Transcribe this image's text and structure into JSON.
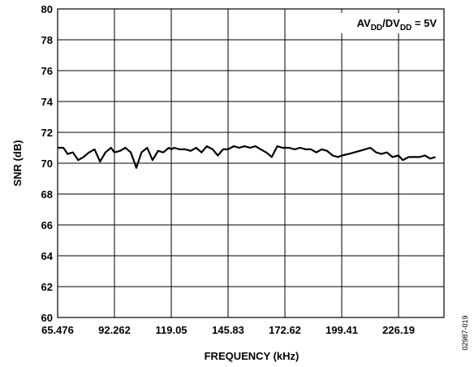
{
  "chart_data": {
    "type": "line",
    "xlabel": "FREQUENCY (kHz)",
    "ylabel": "SNR (dB)",
    "ylim": [
      60,
      80
    ],
    "xlim": [
      65.476,
      247.6
    ],
    "yticks": [
      "60",
      "62",
      "64",
      "66",
      "68",
      "70",
      "72",
      "74",
      "76",
      "78",
      "80"
    ],
    "xticks": [
      "65.476",
      "92.262",
      "119.05",
      "145.83",
      "172.62",
      "199.41",
      "226.19"
    ],
    "grid": true,
    "legend": {
      "base": "AV",
      "sub1": "DD",
      "mid": "/DV",
      "sub2": "DD",
      "tail": " = 5V",
      "placement": "top-right"
    },
    "figure_id": "02987-019",
    "line_color": "#000000",
    "series": [
      {
        "x": [
          65.476,
          68.2,
          70.2,
          72.7,
          75.2,
          77.7,
          80.3,
          82.9,
          85.5,
          88.0,
          90.6,
          92.262,
          94.9,
          97.4,
          100.0,
          102.6,
          105.0,
          107.7,
          110.2,
          112.8,
          115.3,
          117.9,
          119.05,
          120.4,
          123.0,
          125.6,
          128.2,
          130.8,
          133.3,
          135.8,
          138.5,
          141.0,
          143.5,
          145.83,
          148.5,
          151.1,
          153.6,
          156.1,
          158.7,
          161.2,
          163.8,
          166.4,
          169.0,
          171.4,
          172.62,
          174.6,
          177.2,
          179.8,
          182.4,
          184.9,
          187.4,
          190.0,
          192.5,
          195.1,
          197.7,
          199.41,
          202.8,
          205.3,
          207.9,
          210.4,
          212.9,
          215.6,
          218.1,
          220.7,
          223.3,
          226.19,
          228.2,
          231.0,
          233.5,
          236.0,
          238.6,
          241.1,
          243.6
        ],
        "y": [
          71.0,
          71.0,
          70.6,
          70.7,
          70.2,
          70.4,
          70.7,
          70.9,
          70.1,
          70.7,
          71.0,
          70.7,
          70.8,
          71.0,
          70.7,
          69.7,
          70.7,
          71.0,
          70.2,
          70.8,
          70.7,
          71.0,
          70.9,
          71.0,
          70.9,
          70.9,
          70.8,
          71.0,
          70.7,
          71.1,
          70.9,
          70.5,
          70.9,
          70.9,
          71.1,
          71.0,
          71.1,
          71.0,
          71.1,
          70.9,
          70.7,
          70.4,
          71.1,
          71.0,
          71.0,
          71.0,
          70.9,
          71.0,
          70.9,
          70.9,
          70.7,
          70.9,
          70.8,
          70.5,
          70.4,
          70.5,
          70.6,
          70.7,
          70.8,
          70.9,
          71.0,
          70.7,
          70.6,
          70.7,
          70.4,
          70.5,
          70.2,
          70.4,
          70.4,
          70.4,
          70.5,
          70.3,
          70.4
        ]
      }
    ]
  }
}
